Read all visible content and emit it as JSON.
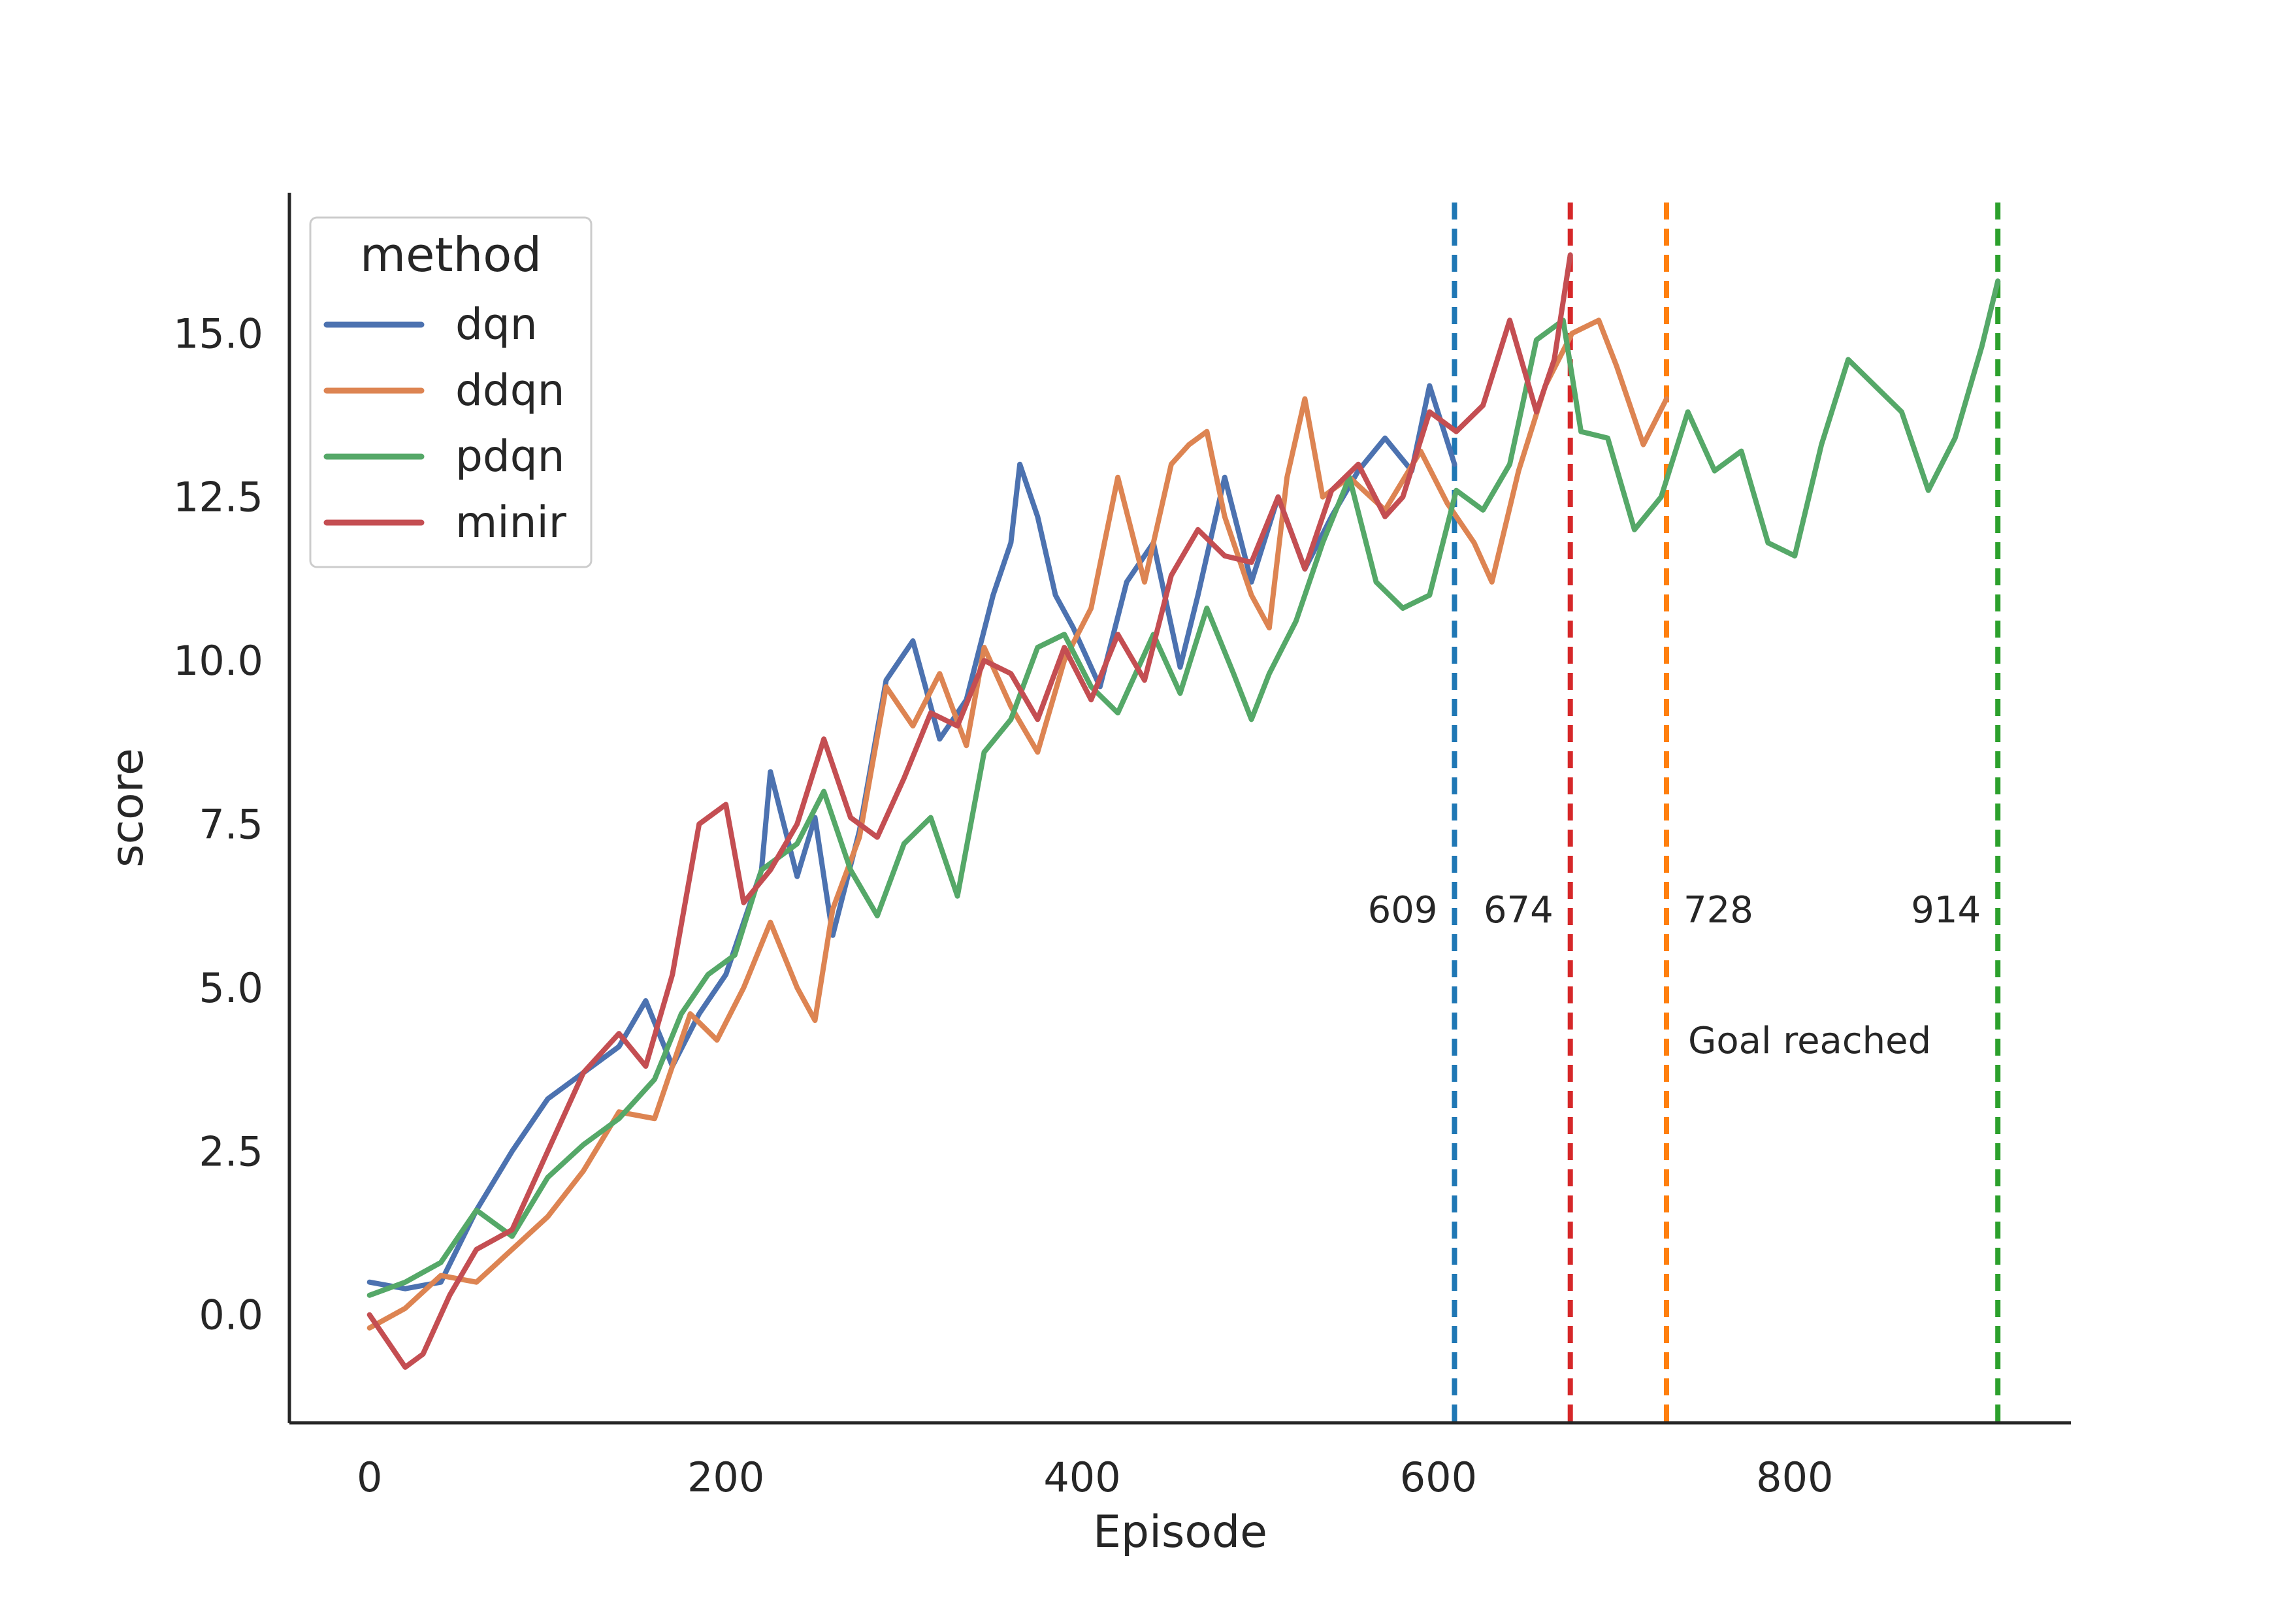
{
  "chart_data": {
    "type": "line",
    "xlabel": "Episode",
    "ylabel": "score",
    "xlim": [
      -45,
      955
    ],
    "ylim": [
      -1.65,
      17.15
    ],
    "xticks": [
      0,
      200,
      400,
      600,
      800
    ],
    "yticks": [
      0.0,
      2.5,
      5.0,
      7.5,
      10.0,
      12.5,
      15.0
    ],
    "grid": false,
    "legend": {
      "title": "method",
      "placement": "top-left"
    },
    "series": [
      {
        "name": "dqn",
        "color": "#4c72b0",
        "points": [
          [
            0,
            0.5
          ],
          [
            20,
            0.4
          ],
          [
            40,
            0.5
          ],
          [
            60,
            1.6
          ],
          [
            80,
            2.5
          ],
          [
            100,
            3.3
          ],
          [
            120,
            3.7
          ],
          [
            140,
            4.1
          ],
          [
            155,
            4.8
          ],
          [
            170,
            3.8
          ],
          [
            185,
            4.6
          ],
          [
            200,
            5.2
          ],
          [
            220,
            6.8
          ],
          [
            225,
            8.3
          ],
          [
            240,
            6.7
          ],
          [
            250,
            7.6
          ],
          [
            260,
            5.8
          ],
          [
            275,
            7.4
          ],
          [
            290,
            9.7
          ],
          [
            305,
            10.3
          ],
          [
            320,
            8.8
          ],
          [
            335,
            9.4
          ],
          [
            350,
            11.0
          ],
          [
            360,
            11.8
          ],
          [
            365,
            13.0
          ],
          [
            375,
            12.2
          ],
          [
            385,
            11.0
          ],
          [
            395,
            10.5
          ],
          [
            410,
            9.6
          ],
          [
            425,
            11.2
          ],
          [
            440,
            11.8
          ],
          [
            455,
            9.9
          ],
          [
            465,
            11.0
          ],
          [
            480,
            12.8
          ],
          [
            495,
            11.2
          ],
          [
            510,
            12.5
          ],
          [
            525,
            11.4
          ],
          [
            540,
            12.2
          ],
          [
            555,
            12.9
          ],
          [
            570,
            13.4
          ],
          [
            585,
            12.9
          ],
          [
            595,
            14.2
          ],
          [
            609,
            13.0
          ]
        ]
      },
      {
        "name": "ddqn",
        "color": "#dd8452",
        "points": [
          [
            0,
            -0.2
          ],
          [
            20,
            0.1
          ],
          [
            40,
            0.6
          ],
          [
            60,
            0.5
          ],
          [
            80,
            1.0
          ],
          [
            100,
            1.5
          ],
          [
            120,
            2.2
          ],
          [
            140,
            3.1
          ],
          [
            160,
            3.0
          ],
          [
            180,
            4.6
          ],
          [
            195,
            4.2
          ],
          [
            210,
            5.0
          ],
          [
            225,
            6.0
          ],
          [
            240,
            5.0
          ],
          [
            250,
            4.5
          ],
          [
            260,
            6.2
          ],
          [
            275,
            7.3
          ],
          [
            290,
            9.6
          ],
          [
            305,
            9.0
          ],
          [
            320,
            9.8
          ],
          [
            335,
            8.7
          ],
          [
            345,
            10.2
          ],
          [
            360,
            9.3
          ],
          [
            375,
            8.6
          ],
          [
            390,
            10.0
          ],
          [
            405,
            10.8
          ],
          [
            420,
            12.8
          ],
          [
            435,
            11.2
          ],
          [
            450,
            13.0
          ],
          [
            460,
            13.3
          ],
          [
            470,
            13.5
          ],
          [
            480,
            12.2
          ],
          [
            495,
            11.0
          ],
          [
            505,
            10.5
          ],
          [
            515,
            12.8
          ],
          [
            525,
            14.0
          ],
          [
            535,
            12.5
          ],
          [
            550,
            12.8
          ],
          [
            570,
            12.3
          ],
          [
            590,
            13.2
          ],
          [
            605,
            12.4
          ],
          [
            620,
            11.8
          ],
          [
            630,
            11.2
          ],
          [
            645,
            12.9
          ],
          [
            660,
            14.2
          ],
          [
            675,
            15.0
          ],
          [
            690,
            15.2
          ],
          [
            700,
            14.5
          ],
          [
            715,
            13.3
          ],
          [
            728,
            14.0
          ]
        ]
      },
      {
        "name": "pdqn",
        "color": "#55a868",
        "points": [
          [
            0,
            0.3
          ],
          [
            20,
            0.5
          ],
          [
            40,
            0.8
          ],
          [
            60,
            1.6
          ],
          [
            80,
            1.2
          ],
          [
            100,
            2.1
          ],
          [
            120,
            2.6
          ],
          [
            140,
            3.0
          ],
          [
            160,
            3.6
          ],
          [
            175,
            4.6
          ],
          [
            190,
            5.2
          ],
          [
            205,
            5.5
          ],
          [
            220,
            6.8
          ],
          [
            240,
            7.2
          ],
          [
            255,
            8.0
          ],
          [
            270,
            6.8
          ],
          [
            285,
            6.1
          ],
          [
            300,
            7.2
          ],
          [
            315,
            7.6
          ],
          [
            330,
            6.4
          ],
          [
            345,
            8.6
          ],
          [
            360,
            9.1
          ],
          [
            375,
            10.2
          ],
          [
            390,
            10.4
          ],
          [
            405,
            9.6
          ],
          [
            420,
            9.2
          ],
          [
            440,
            10.4
          ],
          [
            455,
            9.5
          ],
          [
            470,
            10.8
          ],
          [
            485,
            9.8
          ],
          [
            495,
            9.1
          ],
          [
            505,
            9.8
          ],
          [
            520,
            10.6
          ],
          [
            535,
            11.8
          ],
          [
            550,
            12.8
          ],
          [
            565,
            11.2
          ],
          [
            580,
            10.8
          ],
          [
            595,
            11.0
          ],
          [
            610,
            12.6
          ],
          [
            625,
            12.3
          ],
          [
            640,
            13.0
          ],
          [
            655,
            14.9
          ],
          [
            670,
            15.2
          ],
          [
            680,
            13.5
          ],
          [
            695,
            13.4
          ],
          [
            710,
            12.0
          ],
          [
            725,
            12.5
          ],
          [
            740,
            13.8
          ],
          [
            755,
            12.9
          ],
          [
            770,
            13.2
          ],
          [
            785,
            11.8
          ],
          [
            800,
            11.6
          ],
          [
            815,
            13.3
          ],
          [
            830,
            14.6
          ],
          [
            845,
            14.2
          ],
          [
            860,
            13.8
          ],
          [
            875,
            12.6
          ],
          [
            890,
            13.4
          ],
          [
            905,
            14.8
          ],
          [
            914,
            15.8
          ]
        ]
      },
      {
        "name": "minir",
        "color": "#c44e52",
        "points": [
          [
            0,
            0.0
          ],
          [
            10,
            -0.4
          ],
          [
            20,
            -0.8
          ],
          [
            30,
            -0.6
          ],
          [
            45,
            0.3
          ],
          [
            60,
            1.0
          ],
          [
            80,
            1.3
          ],
          [
            100,
            2.5
          ],
          [
            120,
            3.7
          ],
          [
            140,
            4.3
          ],
          [
            155,
            3.8
          ],
          [
            170,
            5.2
          ],
          [
            185,
            7.5
          ],
          [
            200,
            7.8
          ],
          [
            210,
            6.3
          ],
          [
            225,
            6.8
          ],
          [
            240,
            7.5
          ],
          [
            255,
            8.8
          ],
          [
            270,
            7.6
          ],
          [
            285,
            7.3
          ],
          [
            300,
            8.2
          ],
          [
            315,
            9.2
          ],
          [
            330,
            9.0
          ],
          [
            345,
            10.0
          ],
          [
            360,
            9.8
          ],
          [
            375,
            9.1
          ],
          [
            390,
            10.2
          ],
          [
            405,
            9.4
          ],
          [
            420,
            10.4
          ],
          [
            435,
            9.7
          ],
          [
            450,
            11.3
          ],
          [
            465,
            12.0
          ],
          [
            480,
            11.6
          ],
          [
            495,
            11.5
          ],
          [
            510,
            12.5
          ],
          [
            525,
            11.4
          ],
          [
            540,
            12.6
          ],
          [
            555,
            13.0
          ],
          [
            570,
            12.2
          ],
          [
            580,
            12.5
          ],
          [
            595,
            13.8
          ],
          [
            610,
            13.5
          ],
          [
            625,
            13.9
          ],
          [
            640,
            15.2
          ],
          [
            655,
            13.8
          ],
          [
            665,
            14.6
          ],
          [
            674,
            16.2
          ]
        ]
      }
    ],
    "goal_lines": [
      {
        "x": 609,
        "label": "609",
        "color": "#1f77b4"
      },
      {
        "x": 674,
        "label": "674",
        "color": "#d62728"
      },
      {
        "x": 728,
        "label": "728",
        "color": "#ff7f0e"
      },
      {
        "x": 914,
        "label": "914",
        "color": "#2ca02c"
      }
    ],
    "annotation": "Goal reached"
  }
}
